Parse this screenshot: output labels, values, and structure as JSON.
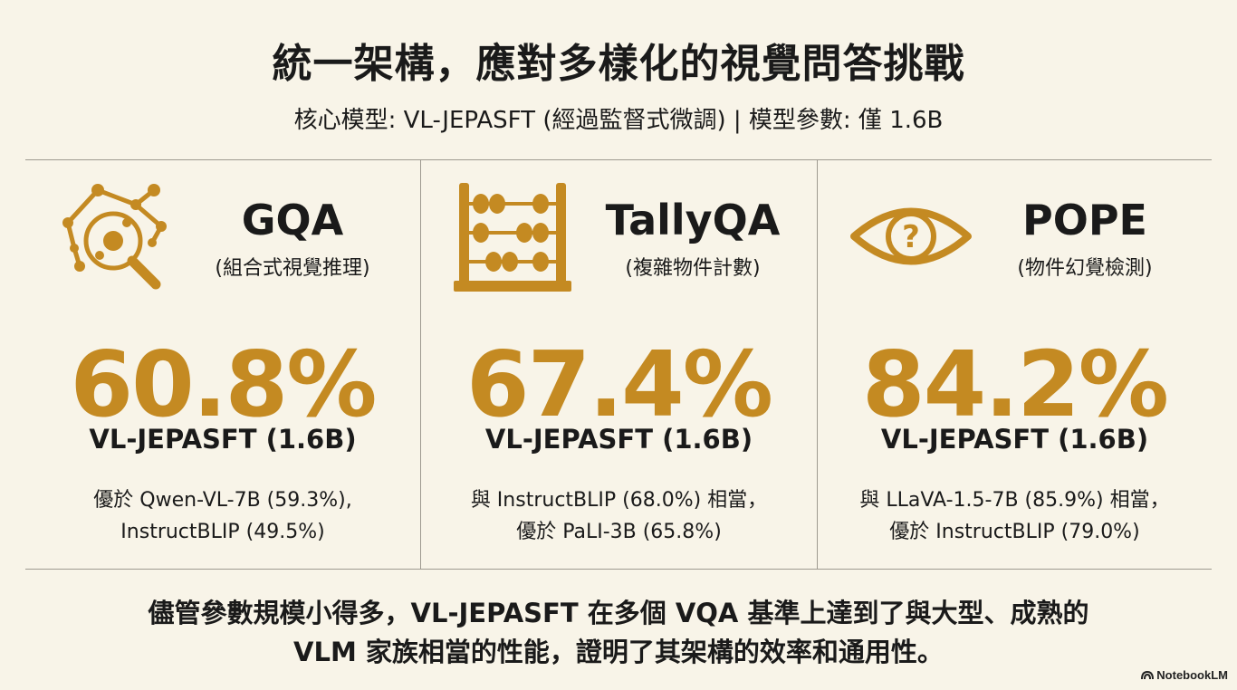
{
  "header": {
    "title": "統一架構，應對多樣化的視覺問答挑戰",
    "subtitle": "核心模型: VL-JEPASFT (經過監督式微調) | 模型參數: 僅 1.6B"
  },
  "benchmarks": [
    {
      "name": "GQA",
      "subtitle": "(組合式視覺推理)",
      "icon": "magnifier-network-icon",
      "score": "60.8%",
      "model": "VL-JEPASFT (1.6B)",
      "comparison_line1": "優於 Qwen-VL-7B (59.3%),",
      "comparison_line2": "InstructBLIP (49.5%)"
    },
    {
      "name": "TallyQA",
      "subtitle": "(複雜物件計數)",
      "icon": "abacus-icon",
      "score": "67.4%",
      "model": "VL-JEPASFT (1.6B)",
      "comparison_line1": "與 InstructBLIP (68.0%) 相當，",
      "comparison_line2": "優於 PaLI-3B (65.8%)"
    },
    {
      "name": "POPE",
      "subtitle": "(物件幻覺檢測)",
      "icon": "eye-question-icon",
      "score": "84.2%",
      "model": "VL-JEPASFT (1.6B)",
      "comparison_line1": "與 LLaVA-1.5-7B (85.9%) 相當，",
      "comparison_line2": "優於 InstructBLIP (79.0%)"
    }
  ],
  "conclusion": {
    "line1": "儘管參數規模小得多，VL-JEPASFT 在多個 VQA 基準上達到了與大型、成熟的",
    "line2": "VLM 家族相當的性能，證明了其架構的效率和通用性。"
  },
  "brand": {
    "label": "NotebookLM"
  },
  "colors": {
    "accent": "#c48a22",
    "background": "#f8f4e8",
    "text": "#1a1a1a",
    "divider": "#9e9a90"
  }
}
